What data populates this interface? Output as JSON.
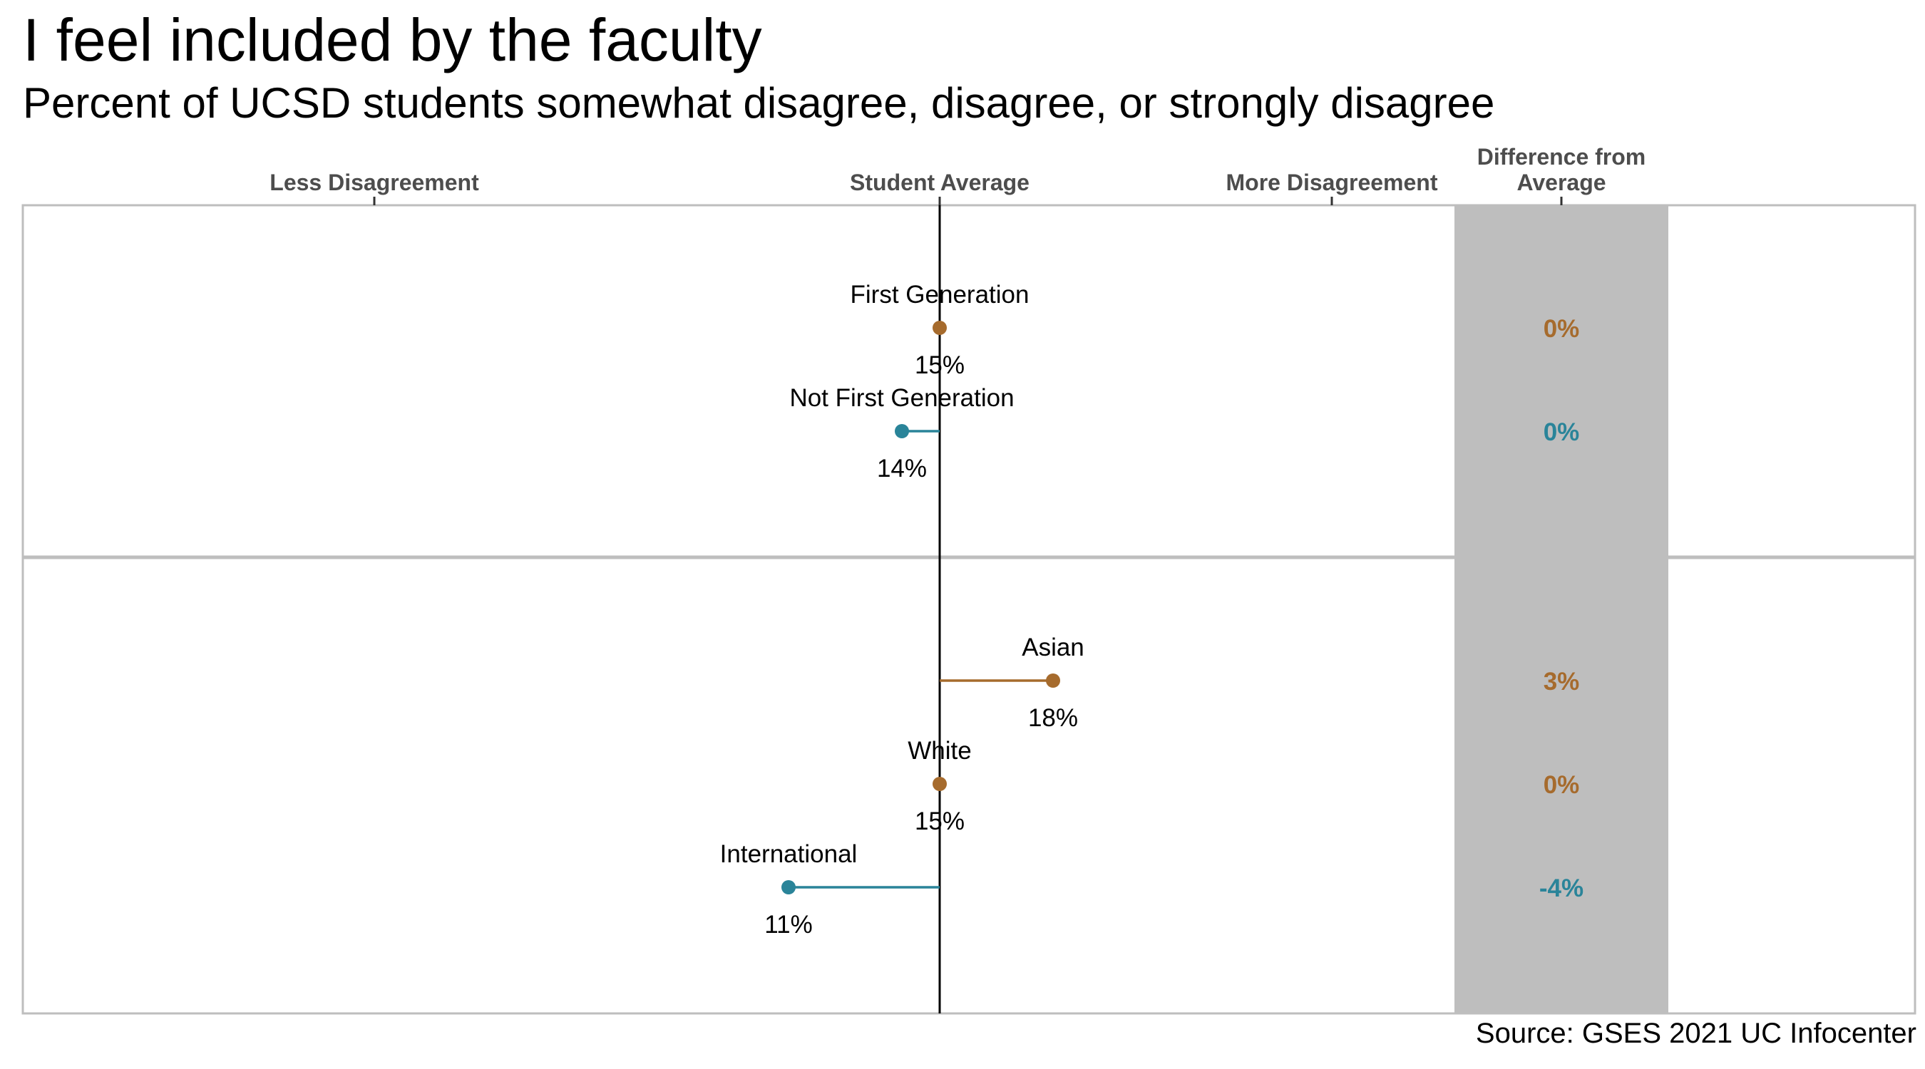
{
  "title": "I feel included by the faculty",
  "subtitle": "Percent of UCSD students somewhat disagree, disagree, or strongly disagree",
  "source": "Source: GSES 2021 UC Infocenter",
  "colors": {
    "above_average": "#A66B2D",
    "below_average": "#2A8499",
    "average_line": "#000000",
    "difference_band": "#BEBEBE",
    "panel_border": "#BEBEBE",
    "axis_label": "#4D4D4D"
  },
  "chart_data": {
    "type": "lollipop",
    "title": "I feel included by the faculty",
    "subtitle": "Percent of UCSD students somewhat disagree, disagree, or strongly disagree",
    "x_axis_labels": {
      "left": "Less Disagreement",
      "center": "Student Average",
      "right": "More Disagreement",
      "difference_column": "Difference from Average"
    },
    "student_average": 15,
    "xlim": [
      6,
      24
    ],
    "panels": [
      {
        "groups": [
          {
            "name": "First Generation",
            "value": 15,
            "value_label": "15%",
            "difference": "0%",
            "direction": "above"
          },
          {
            "name": "Not First Generation",
            "value": 14,
            "value_label": "14%",
            "difference": "0%",
            "direction": "below"
          }
        ]
      },
      {
        "groups": [
          {
            "name": "Asian",
            "value": 18,
            "value_label": "18%",
            "difference": "3%",
            "direction": "above"
          },
          {
            "name": "White",
            "value": 15,
            "value_label": "15%",
            "difference": "0%",
            "direction": "above"
          },
          {
            "name": "International",
            "value": 11,
            "value_label": "11%",
            "difference": "-4%",
            "direction": "below"
          }
        ]
      }
    ]
  }
}
